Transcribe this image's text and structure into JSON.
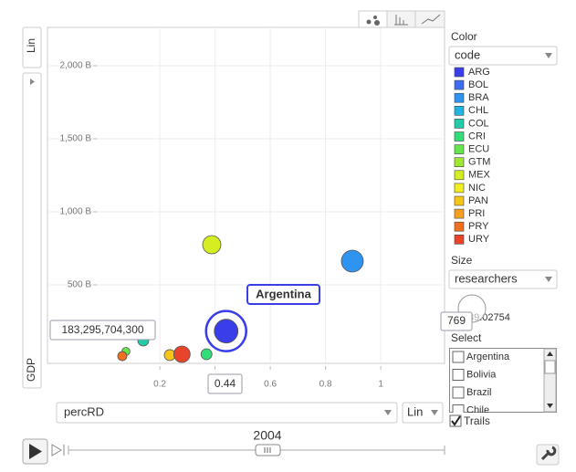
{
  "chart_data": {
    "type": "bubble",
    "x_label": "percRD",
    "y_label": "GDP",
    "x_scale": "Lin",
    "y_scale": "Lin",
    "year": "2004",
    "xlim": [
      -0.207,
      1.231
    ],
    "ylim": [
      -37500000000,
      2262500000000
    ],
    "xticks": [
      0.2,
      0.4,
      0.6,
      0.8,
      1
    ],
    "yticks": [
      {
        "value": 500000000000,
        "label": "500 B"
      },
      {
        "value": 1000000000000,
        "label": "1,000 B"
      },
      {
        "value": 1500000000000,
        "label": "1,500 B"
      },
      {
        "value": 2000000000000,
        "label": "2,000 B"
      }
    ],
    "grid": true,
    "color_title": "Color",
    "color_by": "code",
    "size_title": "Size",
    "size_by": "researchers",
    "size_min": 89.02754,
    "select_title": "Select",
    "select_options": [
      "Argentina",
      "Bolivia",
      "Brazil",
      "Chile"
    ],
    "highlight_label": "Argentina",
    "trails_label": "Trails",
    "trails": true,
    "series": [
      {
        "name": "ARG",
        "color": "#3a3ee8",
        "x": [
          0.44
        ],
        "values": [
          183295704300
        ],
        "value_labels": [
          "183,295,704,300"
        ],
        "size": [
          769
        ]
      },
      {
        "name": "BOL",
        "color": "#3c6cf0",
        "x": [],
        "values": [],
        "size": []
      },
      {
        "name": "BRA",
        "color": "#2f93f0",
        "x": [
          0.897
        ],
        "values": [
          662500000000
        ],
        "size": [
          655
        ]
      },
      {
        "name": "CHL",
        "color": "#22b4e0",
        "x": [],
        "values": [],
        "size": []
      },
      {
        "name": "COL",
        "color": "#22ccaa",
        "x": [
          0.14
        ],
        "values": [
          119000000000
        ],
        "size": [
          164
        ]
      },
      {
        "name": "CRI",
        "color": "#33dd77",
        "x": [
          0.369
        ],
        "values": [
          25000000000
        ],
        "size": [
          164
        ]
      },
      {
        "name": "ECU",
        "color": "#66e64a",
        "x": [
          0.077
        ],
        "values": [
          44000000000
        ],
        "size": [
          89
        ]
      },
      {
        "name": "GTM",
        "color": "#a0e833",
        "x": [],
        "values": [],
        "size": []
      },
      {
        "name": "MEX",
        "color": "#d4ee22",
        "x": [
          0.388
        ],
        "values": [
          775000000000
        ],
        "size": [
          455
        ]
      },
      {
        "name": "NIC",
        "color": "#f2ee22",
        "x": [],
        "values": [],
        "size": []
      },
      {
        "name": "PAN",
        "color": "#f5c518",
        "x": [
          0.236
        ],
        "values": [
          19000000000
        ],
        "size": [
          164
        ]
      },
      {
        "name": "PRI",
        "color": "#f5a020",
        "x": [],
        "values": [],
        "size": []
      },
      {
        "name": "PRY",
        "color": "#f07020",
        "x": [
          0.064
        ],
        "values": [
          12000000000
        ],
        "size": [
          114
        ]
      },
      {
        "name": "URY",
        "color": "#e8442a",
        "x": [
          0.28
        ],
        "values": [
          25000000000
        ],
        "size": [
          368
        ]
      }
    ]
  }
}
